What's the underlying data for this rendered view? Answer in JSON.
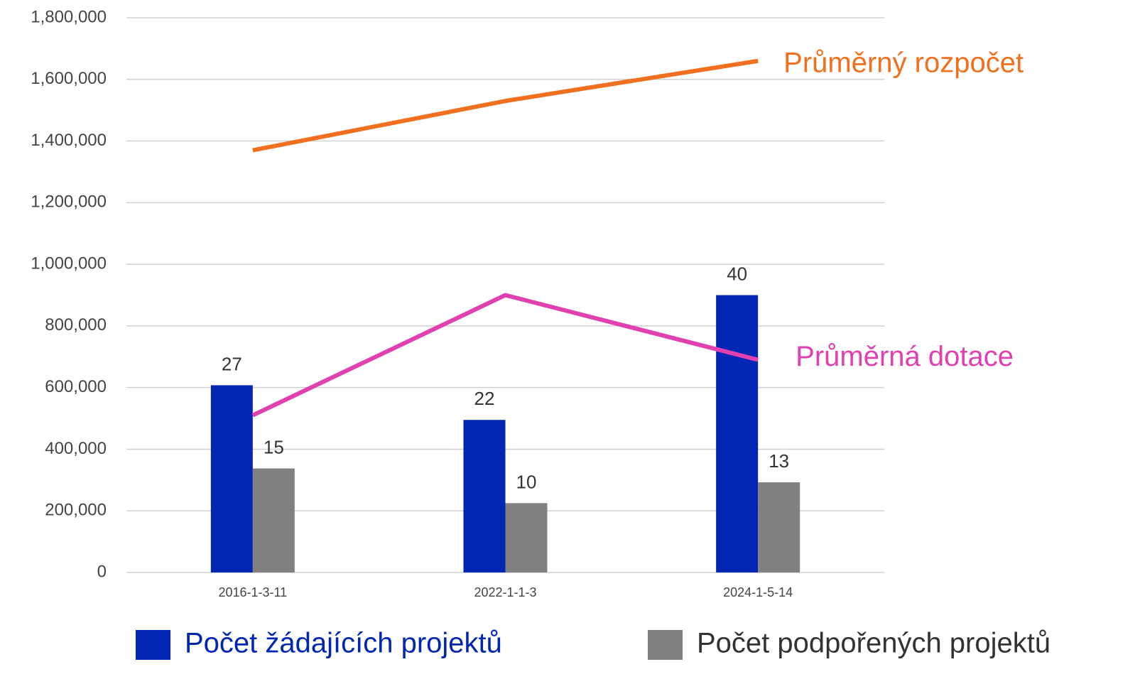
{
  "chart_data": {
    "type": "bar",
    "categories": [
      "2016-1-3-11",
      "2022-1-1-3",
      "2024-1-5-14"
    ],
    "series": [
      {
        "name": "Počet žádajících projektů",
        "type": "bar",
        "axis": "y2",
        "color": "#0026b3",
        "values": [
          27,
          22,
          40
        ]
      },
      {
        "name": "Počet podpořených projektů",
        "type": "bar",
        "axis": "y2",
        "color": "#808080",
        "values": [
          15,
          10,
          13
        ]
      },
      {
        "name": "Průměrný rozpočet",
        "type": "line",
        "axis": "y",
        "color": "#f07020",
        "values": [
          1370000,
          1530000,
          1660000
        ]
      },
      {
        "name": "Průměrná dotace",
        "type": "line",
        "axis": "y",
        "color": "#e040b0",
        "values": [
          510000,
          900000,
          690000
        ]
      }
    ],
    "ylim": [
      0,
      1800000
    ],
    "yticks": [
      0,
      {
        "value": 200000,
        "label": "200,000"
      },
      {
        "value": 400000,
        "label": "400,000"
      },
      {
        "value": 600000,
        "label": "600,000"
      },
      {
        "value": 800000,
        "label": "800,000"
      },
      {
        "value": 1000000,
        "label": "1,000,000"
      },
      {
        "value": 1200000,
        "label": "1,200,000"
      },
      {
        "value": 1400000,
        "label": "1,400,000"
      },
      {
        "value": 1600000,
        "label": "1,600,000"
      },
      {
        "value": 1800000,
        "label": "1,800,000"
      }
    ],
    "y2lim": [
      0,
      80
    ],
    "grid": true
  }
}
